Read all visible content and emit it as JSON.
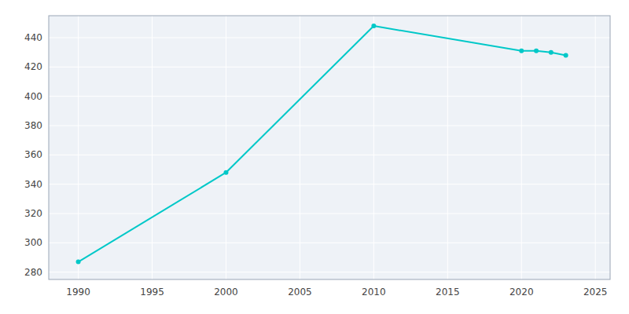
{
  "chart_data": {
    "type": "line",
    "x": [
      1990,
      2000,
      2010,
      2020,
      2021,
      2022,
      2023
    ],
    "values": [
      287,
      348,
      448,
      431,
      431,
      430,
      428
    ],
    "color": "#00C8C8",
    "marker": "circle",
    "xlim": [
      1988,
      2026
    ],
    "ylim": [
      275,
      455
    ],
    "xticks": [
      1990,
      1995,
      2000,
      2005,
      2010,
      2015,
      2020,
      2025
    ],
    "yticks": [
      280,
      300,
      320,
      340,
      360,
      380,
      400,
      420,
      440
    ],
    "grid": true
  }
}
